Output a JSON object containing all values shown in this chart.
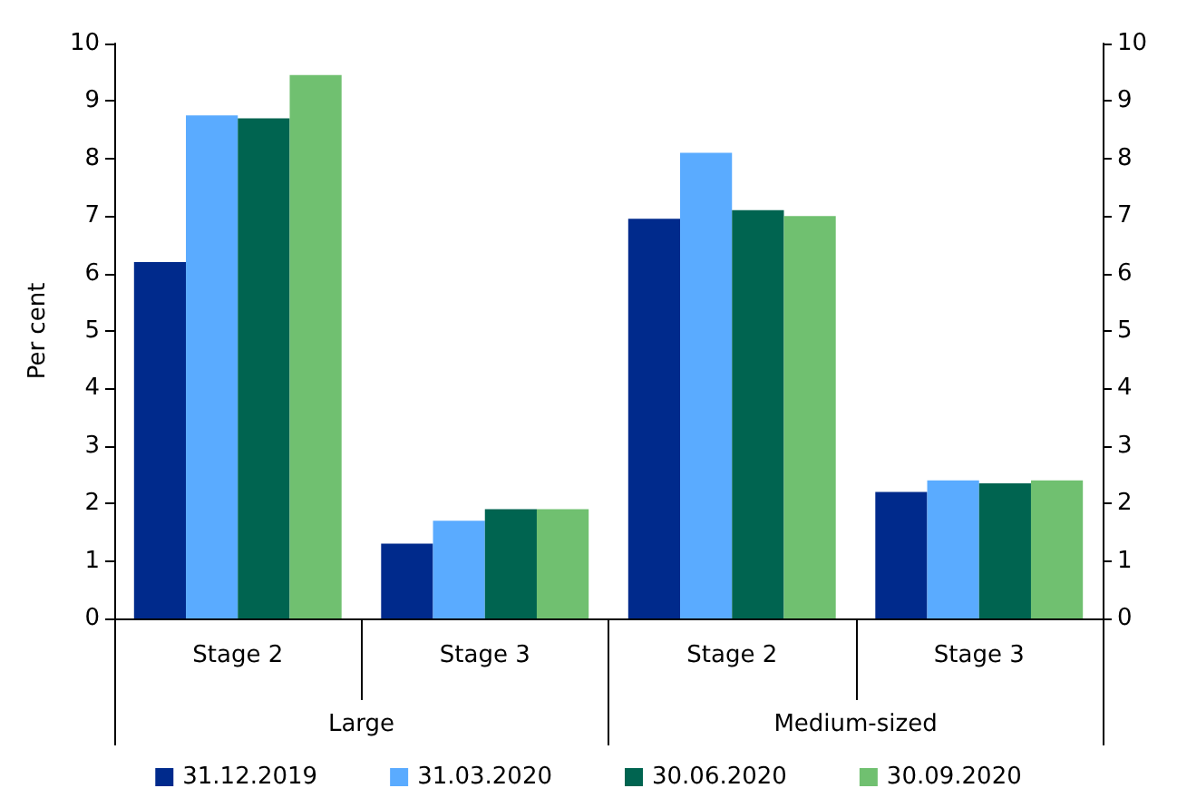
{
  "chart_data": {
    "type": "bar",
    "ylabel": "Per cent",
    "categories": [
      "Stage 2",
      "Stage 3",
      "Stage 2",
      "Stage 3"
    ],
    "annotations": [
      "Large",
      "Medium-sized"
    ],
    "series": [
      {
        "name": "31.12.2019",
        "color": "#002a8c",
        "values": [
          6.2,
          1.3,
          6.95,
          2.2
        ]
      },
      {
        "name": "31.03.2020",
        "color": "#5aabff",
        "values": [
          8.75,
          1.7,
          8.1,
          2.4
        ]
      },
      {
        "name": "30.06.2020",
        "color": "#006450",
        "values": [
          8.7,
          1.9,
          7.1,
          2.35
        ]
      },
      {
        "name": "30.09.2020",
        "color": "#70c070",
        "values": [
          9.45,
          1.9,
          7.0,
          2.4
        ]
      }
    ],
    "ylim": [
      0,
      10
    ],
    "yticks": [
      0,
      1,
      2,
      3,
      4,
      5,
      6,
      7,
      8,
      9,
      10
    ],
    "y2lim": [
      0,
      10
    ],
    "y2ticks": [
      0,
      1,
      2,
      3,
      4,
      5,
      6,
      7,
      8,
      9,
      10
    ],
    "grid": false,
    "legend": "bottom"
  }
}
